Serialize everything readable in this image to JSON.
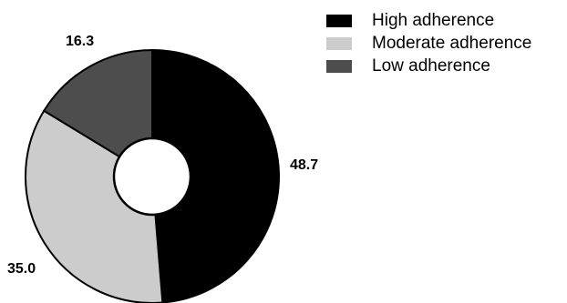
{
  "chart_data": {
    "type": "pie",
    "donut": true,
    "labels": [
      "High adherence",
      "Moderate adherence",
      "Low adherence"
    ],
    "values": [
      48.7,
      35.0,
      16.3
    ],
    "value_labels": [
      "48.7",
      "35.0",
      "16.3"
    ],
    "colors": [
      "#000000",
      "#cccccc",
      "#4d4d4d"
    ],
    "start_angle": "12 o'clock",
    "direction": "clockwise",
    "legend_position": "top-right"
  }
}
